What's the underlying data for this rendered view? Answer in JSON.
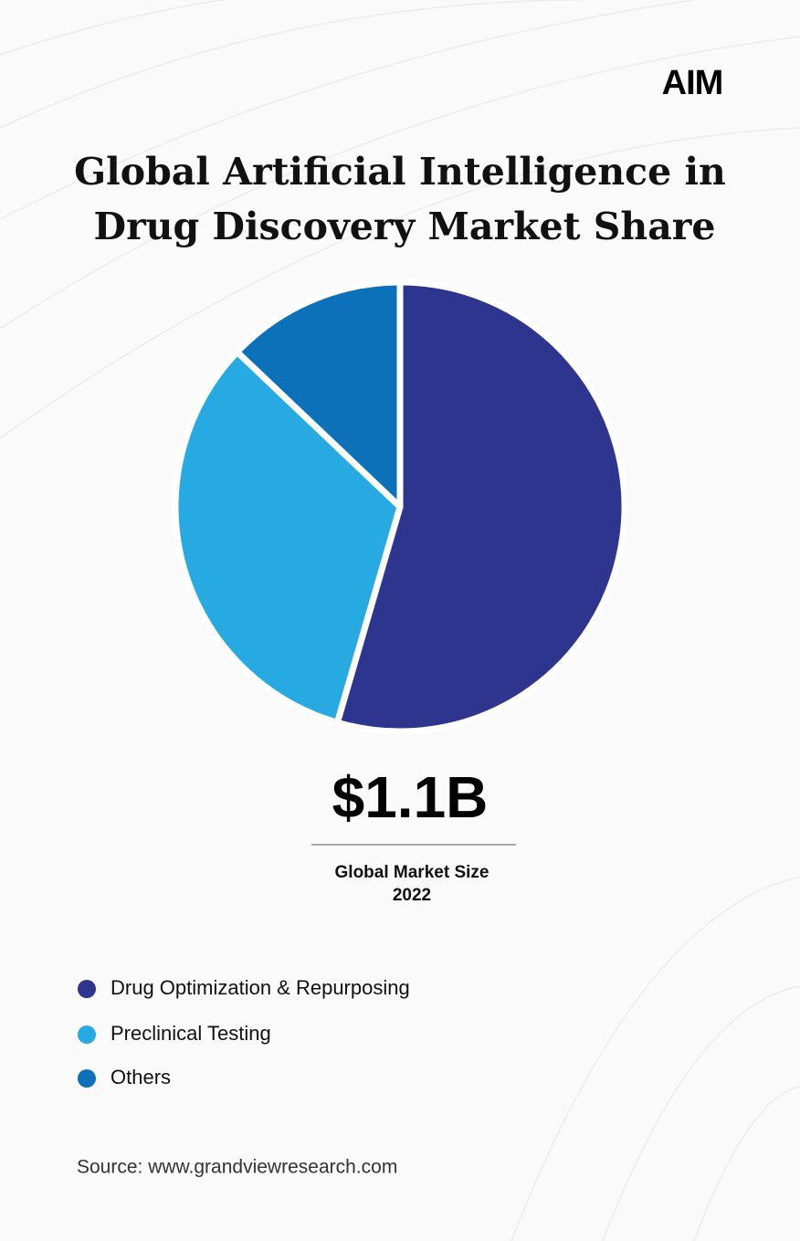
{
  "logo": "AIM",
  "chart_data": {
    "type": "pie",
    "title": [
      "Global Artificial Intelligence in",
      "Drug Discovery Market Share"
    ],
    "categories": [
      "Drug Optimization & Repurposing",
      "Preclinical Testing",
      "Others"
    ],
    "values": [
      54.5,
      32.6,
      12.9
    ],
    "colors": [
      "#2d358e",
      "#27aae1",
      "#0c71b9"
    ],
    "annotations": [
      "$1.1B",
      "Global Market Size",
      "2022"
    ]
  },
  "source": "Source: www.grandviewresearch.com"
}
